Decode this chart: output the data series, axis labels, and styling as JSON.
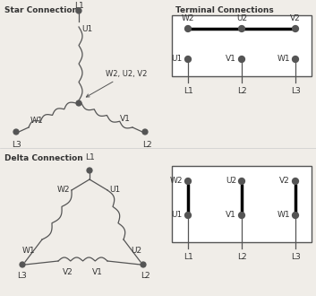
{
  "background_color": "#f0ede8",
  "star_label": "Star Connection",
  "delta_label": "Delta Connection",
  "terminal_label": "Terminal Connections",
  "line_color": "#555555",
  "text_color": "#333333",
  "figsize": [
    3.53,
    3.3
  ],
  "dpi": 100
}
